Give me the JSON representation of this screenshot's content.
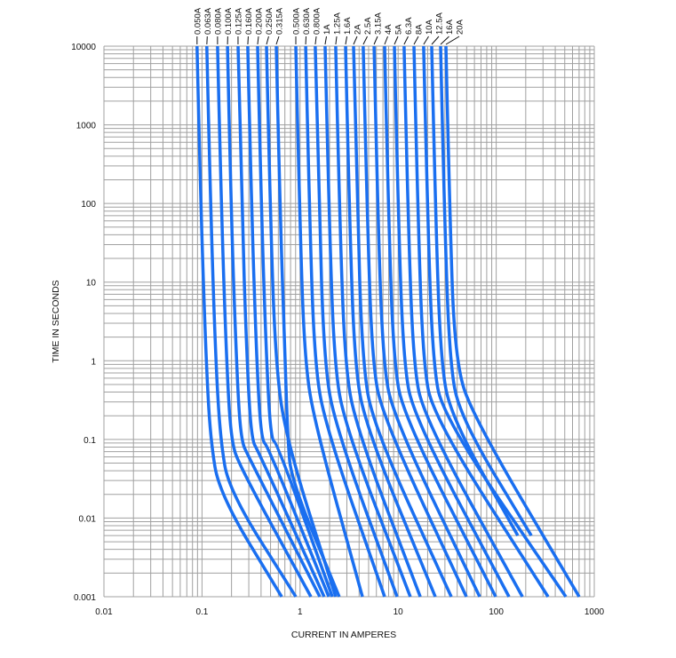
{
  "chart_data": {
    "type": "line",
    "title": "",
    "xlabel": "CURRENT IN AMPERES",
    "ylabel": "TIME IN SECONDS",
    "xscale": "log",
    "yscale": "log",
    "xlim": [
      0.01,
      1000
    ],
    "ylim": [
      0.001,
      10000
    ],
    "grid": true,
    "x_ticks": [
      "0.01",
      "0.1",
      "1",
      "10",
      "100",
      "1000"
    ],
    "y_ticks": [
      "10000",
      "1000",
      "100",
      "10",
      "1",
      "0.1",
      "0.01",
      "0.001"
    ],
    "colors": {
      "series": "#1a6ff0",
      "grid": "#a0a0a0",
      "text": "#111111"
    },
    "series": [
      {
        "name": "0.050A",
        "points": [
          [
            0.089,
            10000
          ],
          [
            0.097,
            100
          ],
          [
            0.11,
            1
          ],
          [
            0.122,
            0.1
          ],
          [
            0.151,
            0.02
          ],
          [
            0.65,
            0.001
          ]
        ]
      },
      {
        "name": "0.063A",
        "points": [
          [
            0.112,
            10000
          ],
          [
            0.122,
            100
          ],
          [
            0.138,
            1
          ],
          [
            0.154,
            0.1
          ],
          [
            0.189,
            0.022
          ],
          [
            0.905,
            0.001
          ]
        ]
      },
      {
        "name": "0.080A",
        "points": [
          [
            0.144,
            10000
          ],
          [
            0.157,
            100
          ],
          [
            0.178,
            1
          ],
          [
            0.197,
            0.1
          ],
          [
            0.243,
            0.045
          ],
          [
            1.29,
            0.001
          ]
        ]
      },
      {
        "name": "0.100A",
        "points": [
          [
            0.182,
            10000
          ],
          [
            0.197,
            100
          ],
          [
            0.224,
            1
          ],
          [
            0.248,
            0.1
          ],
          [
            0.299,
            0.06
          ],
          [
            1.59,
            0.001
          ]
        ]
      },
      {
        "name": "0.125A",
        "points": [
          [
            0.233,
            10000
          ],
          [
            0.254,
            100
          ],
          [
            0.287,
            1
          ],
          [
            0.319,
            0.1
          ],
          [
            0.377,
            0.07
          ],
          [
            1.76,
            0.001
          ]
        ]
      },
      {
        "name": "0.160A",
        "points": [
          [
            0.293,
            10000
          ],
          [
            0.319,
            100
          ],
          [
            0.361,
            1
          ],
          [
            0.401,
            0.1
          ],
          [
            0.474,
            0.08
          ],
          [
            1.96,
            0.001
          ]
        ]
      },
      {
        "name": "0.200A",
        "points": [
          [
            0.369,
            10000
          ],
          [
            0.401,
            100
          ],
          [
            0.455,
            1
          ],
          [
            0.505,
            0.1
          ],
          [
            0.583,
            0.09
          ],
          [
            2.13,
            0.001
          ]
        ]
      },
      {
        "name": "0.250A",
        "points": [
          [
            0.455,
            10000
          ],
          [
            0.494,
            100
          ],
          [
            0.56,
            1
          ],
          [
            0.719,
            0.1
          ],
          [
            2.31,
            0.001
          ]
        ]
      },
      {
        "name": "0.315A",
        "points": [
          [
            0.572,
            10000
          ],
          [
            0.621,
            100
          ],
          [
            0.705,
            1
          ],
          [
            0.75,
            0.1
          ],
          [
            0.815,
            0.03
          ],
          [
            2.51,
            0.001
          ]
        ]
      },
      {
        "name": "0.500A",
        "points": [
          [
            0.905,
            10000
          ],
          [
            0.983,
            100
          ],
          [
            1.11,
            1
          ],
          [
            1.43,
            0.15
          ],
          [
            4.32,
            0.001
          ]
        ]
      },
      {
        "name": "0.630A",
        "points": [
          [
            1.14,
            10000
          ],
          [
            1.24,
            100
          ],
          [
            1.4,
            1
          ],
          [
            1.8,
            0.15
          ],
          [
            7.28,
            0.001
          ]
        ]
      },
      {
        "name": "0.800A",
        "points": [
          [
            1.43,
            10000
          ],
          [
            1.56,
            100
          ],
          [
            1.76,
            1
          ],
          [
            2.27,
            0.15
          ],
          [
            9.75,
            0.001
          ]
        ]
      },
      {
        "name": "1A",
        "points": [
          [
            1.8,
            10000
          ],
          [
            1.96,
            100
          ],
          [
            2.22,
            1
          ],
          [
            2.85,
            0.15
          ],
          [
            13.3,
            0.001
          ]
        ]
      },
      {
        "name": "1.25A",
        "points": [
          [
            2.31,
            10000
          ],
          [
            2.51,
            100
          ],
          [
            2.85,
            1
          ],
          [
            3.66,
            0.15
          ],
          [
            16.8,
            0.001
          ]
        ]
      },
      {
        "name": "1.6A",
        "points": [
          [
            2.91,
            10000
          ],
          [
            3.16,
            100
          ],
          [
            3.58,
            1
          ],
          [
            4.6,
            0.15
          ],
          [
            23.9,
            0.001
          ]
        ]
      },
      {
        "name": "2A",
        "points": [
          [
            3.51,
            10000
          ],
          [
            3.82,
            100
          ],
          [
            4.32,
            1
          ],
          [
            5.55,
            0.15
          ],
          [
            34.8,
            0.001
          ]
        ]
      },
      {
        "name": "2.5A",
        "points": [
          [
            4.41,
            10000
          ],
          [
            4.8,
            100
          ],
          [
            5.43,
            1
          ],
          [
            6.98,
            0.19
          ],
          [
            49.6,
            0.001
          ]
        ]
      },
      {
        "name": "3.15A",
        "points": [
          [
            5.68,
            10000
          ],
          [
            6.17,
            100
          ],
          [
            6.98,
            1
          ],
          [
            8.97,
            0.19
          ],
          [
            67.9,
            0.001
          ]
        ]
      },
      {
        "name": "4A",
        "points": [
          [
            7.28,
            10000
          ],
          [
            7.92,
            100
          ],
          [
            8.97,
            1
          ],
          [
            11.5,
            0.19
          ],
          [
            98.8,
            0.001
          ]
        ]
      },
      {
        "name": "5A",
        "points": [
          [
            9.16,
            10000
          ],
          [
            9.96,
            100
          ],
          [
            11.3,
            1
          ],
          [
            14.5,
            0.19
          ],
          [
            135,
            0.001
          ]
        ]
      },
      {
        "name": "6.3A",
        "points": [
          [
            11.5,
            10000
          ],
          [
            12.5,
            100
          ],
          [
            14.2,
            1
          ],
          [
            18.2,
            0.19
          ],
          [
            185,
            0.001
          ]
        ]
      },
      {
        "name": "8A",
        "points": [
          [
            14.5,
            10000
          ],
          [
            15.8,
            100
          ],
          [
            17.9,
            1
          ],
          [
            22.9,
            0.19
          ],
          [
            338,
            0.001
          ]
        ]
      },
      {
        "name": "10A",
        "points": [
          [
            18.2,
            10000
          ],
          [
            19.8,
            100
          ],
          [
            22.5,
            1
          ],
          [
            28.8,
            0.19
          ],
          [
            513,
            0.001
          ]
        ]
      },
      {
        "name": "12.5A",
        "points": [
          [
            22.0,
            10000
          ],
          [
            23.9,
            100
          ],
          [
            27.1,
            1
          ],
          [
            34.8,
            0.19
          ],
          [
            166,
            0.006
          ]
        ]
      },
      {
        "name": "16A",
        "points": [
          [
            27.1,
            10000
          ],
          [
            29.4,
            100
          ],
          [
            33.4,
            1
          ],
          [
            42.9,
            0.19
          ],
          [
            228,
            0.006
          ]
        ]
      },
      {
        "name": "20A",
        "points": [
          [
            30.7,
            10000
          ],
          [
            33.4,
            100
          ],
          [
            37.8,
            1
          ],
          [
            58.6,
            0.19
          ],
          [
            702,
            0.001
          ]
        ]
      }
    ]
  }
}
